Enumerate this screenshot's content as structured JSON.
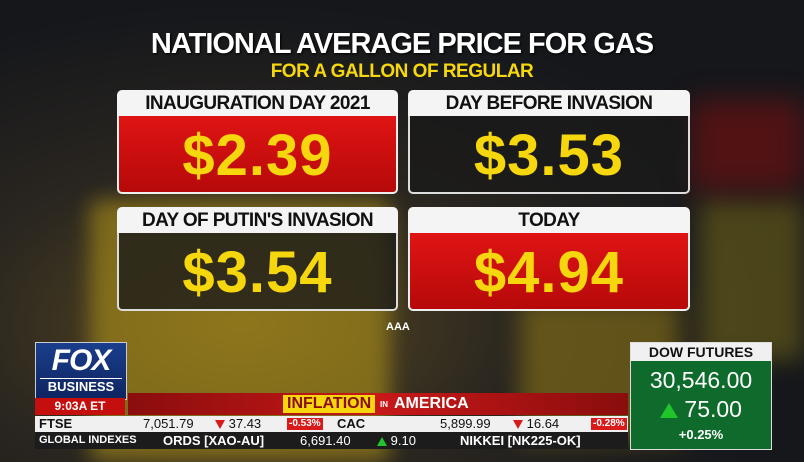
{
  "header": {
    "title": "NATIONAL AVERAGE PRICE FOR GAS",
    "subtitle": "FOR A GALLON OF REGULAR"
  },
  "cards": [
    {
      "label": "INAUGURATION DAY 2021",
      "price": "$2.39"
    },
    {
      "label": "DAY BEFORE INVASION",
      "price": "$3.53"
    },
    {
      "label": "DAY OF PUTIN'S INVASION",
      "price": "$3.54"
    },
    {
      "label": "TODAY",
      "price": "$4.94"
    }
  ],
  "source": "AAA",
  "logo": {
    "network": "FOX",
    "channel": "BUSINESS",
    "time": "9:03A ET"
  },
  "banner": {
    "left": "INFLATION",
    "middle": "IN",
    "right": "AMERICA"
  },
  "ticker": {
    "row1": [
      "FTSE",
      "7,051.79",
      "37.43",
      "-0.53%",
      "CAC",
      "5,899.99",
      "16.64",
      "-0.28%"
    ],
    "row2": [
      "GLOBAL INDEXES",
      "ORDS [XAO-AU]",
      "6,691.40",
      "9.10",
      "NIKKEI [NK225-OK]"
    ]
  },
  "dow": {
    "label": "DOW FUTURES",
    "value": "30,546.00",
    "change": "75.00",
    "percent": "+0.25%"
  }
}
